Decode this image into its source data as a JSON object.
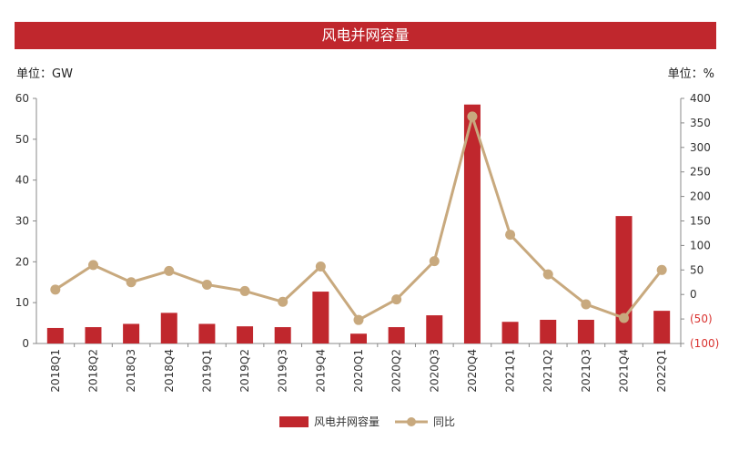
{
  "title": "风电并网容量",
  "unit_left": "单位：GW",
  "unit_right": "单位：%",
  "colors": {
    "bar": "#c0272d",
    "line": "#c8a97e",
    "neg_tick": "#d9322f"
  },
  "chart_data": {
    "type": "bar+line",
    "title": "风电并网容量",
    "categories": [
      "2018Q1",
      "2018Q2",
      "2018Q3",
      "2018Q4",
      "2019Q1",
      "2019Q2",
      "2019Q3",
      "2019Q4",
      "2020Q1",
      "2020Q2",
      "2020Q3",
      "2020Q4",
      "2021Q1",
      "2021Q2",
      "2021Q3",
      "2021Q4",
      "2022Q1"
    ],
    "series": [
      {
        "name": "风电并网容量",
        "type": "bar",
        "axis": "left",
        "values": [
          3.8,
          4.0,
          4.8,
          7.5,
          4.8,
          4.2,
          4.0,
          12.7,
          2.4,
          4.0,
          6.9,
          58.5,
          5.3,
          5.8,
          5.8,
          31.2,
          8.0
        ]
      },
      {
        "name": "同比",
        "type": "line",
        "axis": "right",
        "values": [
          10,
          60,
          25,
          48,
          20,
          7,
          -15,
          57,
          -52,
          -10,
          68,
          363,
          122,
          41,
          -20,
          -48,
          50
        ]
      }
    ],
    "y_left": {
      "min": 0,
      "max": 60,
      "ticks": [
        "0",
        "10",
        "20",
        "30",
        "40",
        "50",
        "60"
      ]
    },
    "y_right": {
      "min": -100,
      "max": 400,
      "ticks": [
        "(100)",
        "(50)",
        "0",
        "50",
        "100",
        "150",
        "200",
        "250",
        "300",
        "350",
        "400"
      ]
    },
    "legend_position": "bottom"
  }
}
